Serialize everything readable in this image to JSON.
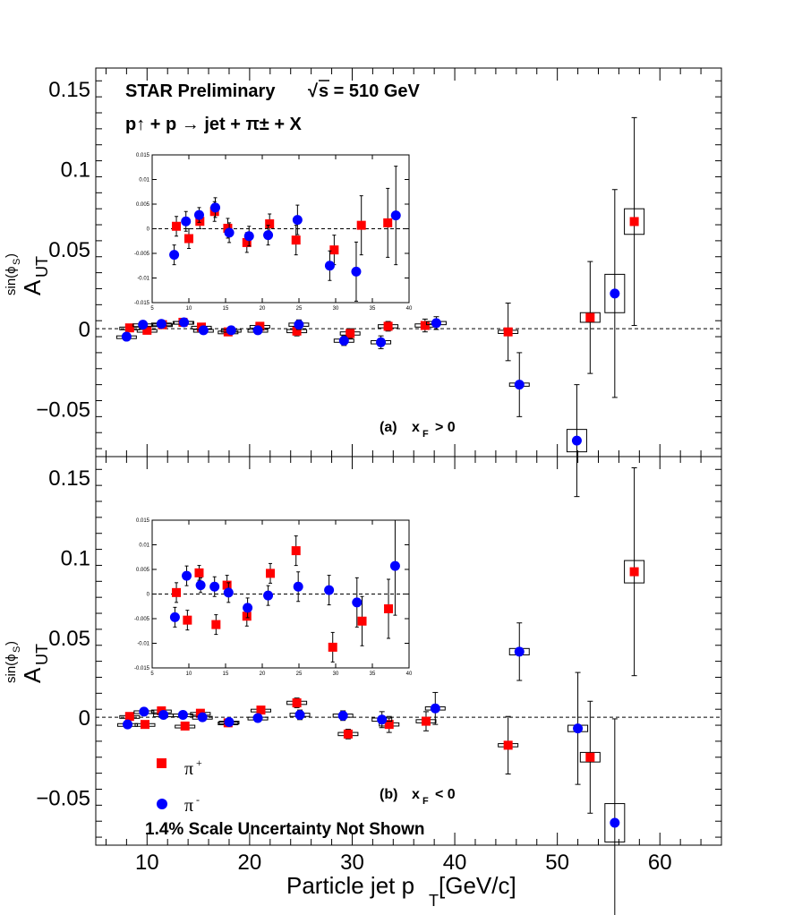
{
  "chart_data": [
    {
      "type": "scatter",
      "panel_label": "(a)",
      "panel_condition": {
        "var": "x",
        "sub": "F",
        "rel": "> 0"
      },
      "xlim": [
        5,
        66
      ],
      "ylim": [
        -0.08,
        0.163
      ],
      "yticks": [
        -0.05,
        0,
        0.05,
        0.1,
        0.15
      ],
      "ytick_labels": [
        "−0.05",
        "0",
        "0.05",
        "0.1",
        "0.15"
      ],
      "series": [
        {
          "name": "π+",
          "marker": "square",
          "color": "#ff0000",
          "x": [
            8.3,
            10.0,
            11.5,
            13.5,
            15.3,
            17.9,
            21.0,
            24.6,
            29.8,
            33.5,
            37.1,
            45.2,
            53.2,
            57.5
          ],
          "y": [
            0.0005,
            -0.001,
            0.0025,
            0.004,
            0.001,
            -0.002,
            0.0015,
            -0.0015,
            -0.003,
            0.0015,
            0.002,
            -0.002,
            0.007,
            0.067
          ],
          "err": [
            0.002,
            0.002,
            0.0015,
            0.002,
            0.002,
            0.002,
            0.002,
            0.003,
            0.003,
            0.003,
            0.004,
            0.018,
            0.035,
            0.065
          ],
          "sys": [
            0.0005,
            0.0005,
            0.0005,
            0.0005,
            0.0005,
            0.0005,
            0.0005,
            0.001,
            0.001,
            0.001,
            0.001,
            0.001,
            0.003,
            0.008
          ]
        },
        {
          "name": "π-",
          "marker": "circle",
          "color": "#0000ff",
          "x": [
            8.0,
            9.6,
            11.4,
            13.6,
            15.5,
            18.2,
            20.8,
            24.8,
            29.2,
            32.8,
            38.2,
            46.3,
            51.9,
            55.6
          ],
          "y": [
            -0.005,
            0.0025,
            0.003,
            0.004,
            -0.001,
            -0.001,
            -0.001,
            0.0025,
            -0.0075,
            -0.0085,
            0.0035,
            -0.035,
            -0.07,
            0.022
          ],
          "err": [
            0.002,
            0.002,
            0.0015,
            0.002,
            0.002,
            0.002,
            0.002,
            0.003,
            0.003,
            0.004,
            0.004,
            0.02,
            0.035,
            0.065
          ],
          "sys": [
            0.0005,
            0.0005,
            0.0005,
            0.0005,
            0.0005,
            0.0005,
            0.0005,
            0.001,
            0.001,
            0.001,
            0.001,
            0.001,
            0.007,
            0.012
          ]
        }
      ],
      "inset": {
        "xlim": [
          5,
          40
        ],
        "ylim": [
          -0.015,
          0.015
        ],
        "xticks": [
          5,
          10,
          15,
          20,
          25,
          30,
          35,
          40
        ],
        "yticks": [
          -0.015,
          -0.01,
          -0.005,
          0,
          0.005,
          0.01,
          0.015
        ],
        "ytick_labels": [
          "-0.015",
          "-0.01",
          "-0.005",
          "0",
          "0.005",
          "0.01",
          "0.015"
        ],
        "series": [
          {
            "name": "π+",
            "x": [
              8.3,
              10.0,
              11.5,
              13.5,
              15.3,
              17.9,
              21.0,
              24.6,
              29.8,
              33.5,
              37.1
            ],
            "y": [
              0.0005,
              -0.002,
              0.0015,
              0.0035,
              0.0001,
              -0.0028,
              0.001,
              -0.0023,
              -0.0043,
              0.0007,
              0.0012
            ],
            "err": [
              0.002,
              0.002,
              0.0015,
              0.002,
              0.002,
              0.002,
              0.002,
              0.003,
              0.003,
              0.006,
              0.007
            ]
          },
          {
            "name": "π-",
            "x": [
              8.0,
              9.6,
              11.4,
              13.6,
              15.5,
              18.2,
              20.8,
              24.8,
              29.2,
              32.8,
              38.2
            ],
            "y": [
              -0.0053,
              0.0015,
              0.0028,
              0.0043,
              -0.0008,
              -0.0015,
              -0.0013,
              0.0018,
              -0.0075,
              -0.0087,
              0.0027
            ],
            "err": [
              0.002,
              0.002,
              0.0015,
              0.002,
              0.002,
              0.002,
              0.002,
              0.003,
              0.003,
              0.006,
              0.01
            ]
          }
        ]
      }
    },
    {
      "type": "scatter",
      "panel_label": "(b)",
      "panel_condition": {
        "var": "x",
        "sub": "F",
        "rel": "< 0"
      },
      "xlim": [
        5,
        66
      ],
      "ylim": [
        -0.08,
        0.163
      ],
      "yticks": [
        -0.05,
        0,
        0.05,
        0.1,
        0.15
      ],
      "ytick_labels": [
        "−0.05",
        "0",
        "0.05",
        "0.1",
        "0.15"
      ],
      "xticks": [
        10,
        20,
        30,
        40,
        50,
        60
      ],
      "xtick_labels": [
        "10",
        "20",
        "30",
        "40",
        "50",
        "60"
      ],
      "series": [
        {
          "name": "π+",
          "marker": "square",
          "color": "#ff0000",
          "x": [
            8.3,
            9.8,
            11.4,
            13.7,
            15.2,
            17.9,
            21.1,
            24.6,
            29.6,
            33.6,
            37.2,
            45.2,
            53.2,
            57.5
          ],
          "y": [
            0.0005,
            -0.0045,
            0.004,
            -0.0055,
            0.0025,
            -0.0035,
            0.0045,
            0.009,
            -0.0105,
            -0.0045,
            -0.0025,
            -0.0175,
            -0.025,
            0.091
          ],
          "err": [
            0.002,
            0.002,
            0.0015,
            0.002,
            0.002,
            0.002,
            0.002,
            0.003,
            0.003,
            0.005,
            0.006,
            0.018,
            0.035,
            0.065
          ],
          "sys": [
            0.0005,
            0.0005,
            0.0005,
            0.0005,
            0.0005,
            0.0005,
            0.0005,
            0.001,
            0.001,
            0.001,
            0.001,
            0.001,
            0.003,
            0.007
          ]
        },
        {
          "name": "π-",
          "marker": "circle",
          "color": "#0000ff",
          "x": [
            8.1,
            9.7,
            11.6,
            13.5,
            15.4,
            18.0,
            20.8,
            24.9,
            29.1,
            32.9,
            38.1,
            46.3,
            52.0,
            55.6
          ],
          "y": [
            -0.0045,
            0.0035,
            0.0015,
            0.0015,
            0.0,
            -0.003,
            -0.0005,
            0.0015,
            0.001,
            -0.0015,
            0.0055,
            0.041,
            -0.007,
            -0.066
          ],
          "err": [
            0.002,
            0.002,
            0.0015,
            0.002,
            0.002,
            0.002,
            0.002,
            0.003,
            0.003,
            0.005,
            0.01,
            0.018,
            0.035,
            0.065
          ],
          "sys": [
            0.0005,
            0.0005,
            0.0005,
            0.0005,
            0.0005,
            0.0005,
            0.0005,
            0.001,
            0.001,
            0.001,
            0.001,
            0.002,
            0.002,
            0.012
          ]
        }
      ],
      "inset": {
        "xlim": [
          5,
          40
        ],
        "ylim": [
          -0.015,
          0.015
        ],
        "xticks": [
          5,
          10,
          15,
          20,
          25,
          30,
          35,
          40
        ],
        "yticks": [
          -0.015,
          -0.01,
          -0.005,
          0,
          0.005,
          0.01,
          0.015
        ],
        "ytick_labels": [
          "-0.015",
          "-0.01",
          "-0.005",
          "0",
          "0.005",
          "0.01",
          "0.015"
        ],
        "series": [
          {
            "name": "π+",
            "x": [
              8.3,
              9.8,
              11.4,
              13.7,
              15.2,
              17.9,
              21.1,
              24.6,
              29.6,
              33.6,
              37.2
            ],
            "y": [
              0.0003,
              -0.0053,
              0.0043,
              -0.0062,
              0.0018,
              -0.0045,
              0.0042,
              0.0088,
              -0.0108,
              -0.0055,
              -0.003
            ],
            "err": [
              0.002,
              0.002,
              0.0015,
              0.002,
              0.002,
              0.002,
              0.002,
              0.003,
              0.003,
              0.005,
              0.006
            ]
          },
          {
            "name": "π-",
            "x": [
              8.1,
              9.7,
              11.6,
              13.5,
              15.4,
              18.0,
              20.8,
              24.9,
              29.1,
              32.9,
              38.1
            ],
            "y": [
              -0.0047,
              0.0037,
              0.0018,
              0.0015,
              0.0003,
              -0.0028,
              -0.0003,
              0.0015,
              0.0008,
              -0.0017,
              0.0057
            ],
            "err": [
              0.002,
              0.002,
              0.0015,
              0.002,
              0.002,
              0.002,
              0.002,
              0.003,
              0.003,
              0.005,
              0.01
            ]
          }
        ]
      }
    }
  ],
  "labels": {
    "header_line1_a": "STAR Preliminary",
    "header_line1_b": "s = 510 GeV",
    "header_line2": "p↑ + p  → jet +  π± + X",
    "ylabel_main": "A",
    "ylabel_sub": "UT",
    "ylabel_sup": "sin(ϕ",
    "ylabel_sup_sub": "S",
    "ylabel_sup_close": ")",
    "xlabel": "Particle jet p",
    "xlabel_sub": "T",
    "xlabel_unit": " [GeV/c]",
    "legend_pi_plus": "π",
    "legend_pi_plus_sup": "+",
    "legend_pi_minus": "π",
    "legend_pi_minus_sup": "-",
    "footnote": "1.4% Scale Uncertainty Not Shown"
  }
}
